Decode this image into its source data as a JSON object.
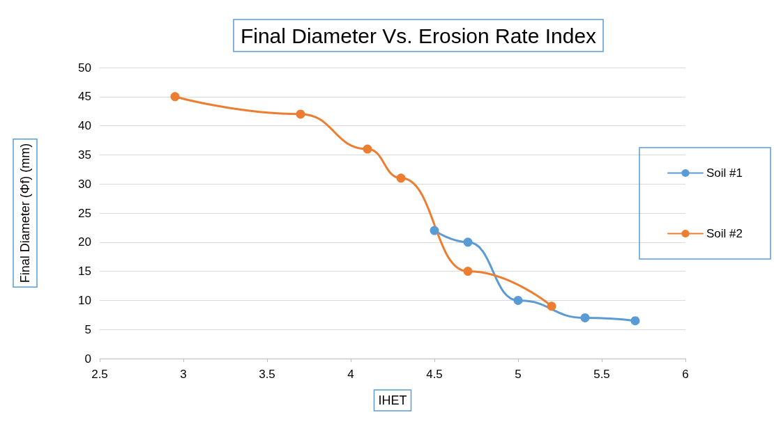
{
  "chart_data": {
    "type": "line",
    "title": "Final Diameter Vs. Erosion Rate Index",
    "xlabel": "IHET",
    "ylabel": "Final Diameter (Φf) (mm)",
    "series": [
      {
        "name": "Soil #1",
        "color": "#5b9bd5",
        "x": [
          4.5,
          4.7,
          5.0,
          5.4,
          5.7
        ],
        "values": [
          22,
          20,
          10,
          7,
          6.5
        ]
      },
      {
        "name": "Soil #2",
        "color": "#ed7d31",
        "x": [
          2.95,
          3.7,
          4.1,
          4.3,
          4.7,
          5.2
        ],
        "values": [
          45,
          42,
          36,
          31,
          15,
          9
        ]
      }
    ],
    "xlim": [
      2.5,
      6
    ],
    "xticks": [
      2.5,
      3,
      3.5,
      4,
      4.5,
      5,
      5.5,
      6
    ],
    "ylim": [
      0,
      50
    ],
    "yticks": [
      0,
      5,
      10,
      15,
      20,
      25,
      30,
      35,
      40,
      45,
      50
    ],
    "grid": "y",
    "legend": "right",
    "marker": "circle",
    "line_style": "solid"
  }
}
